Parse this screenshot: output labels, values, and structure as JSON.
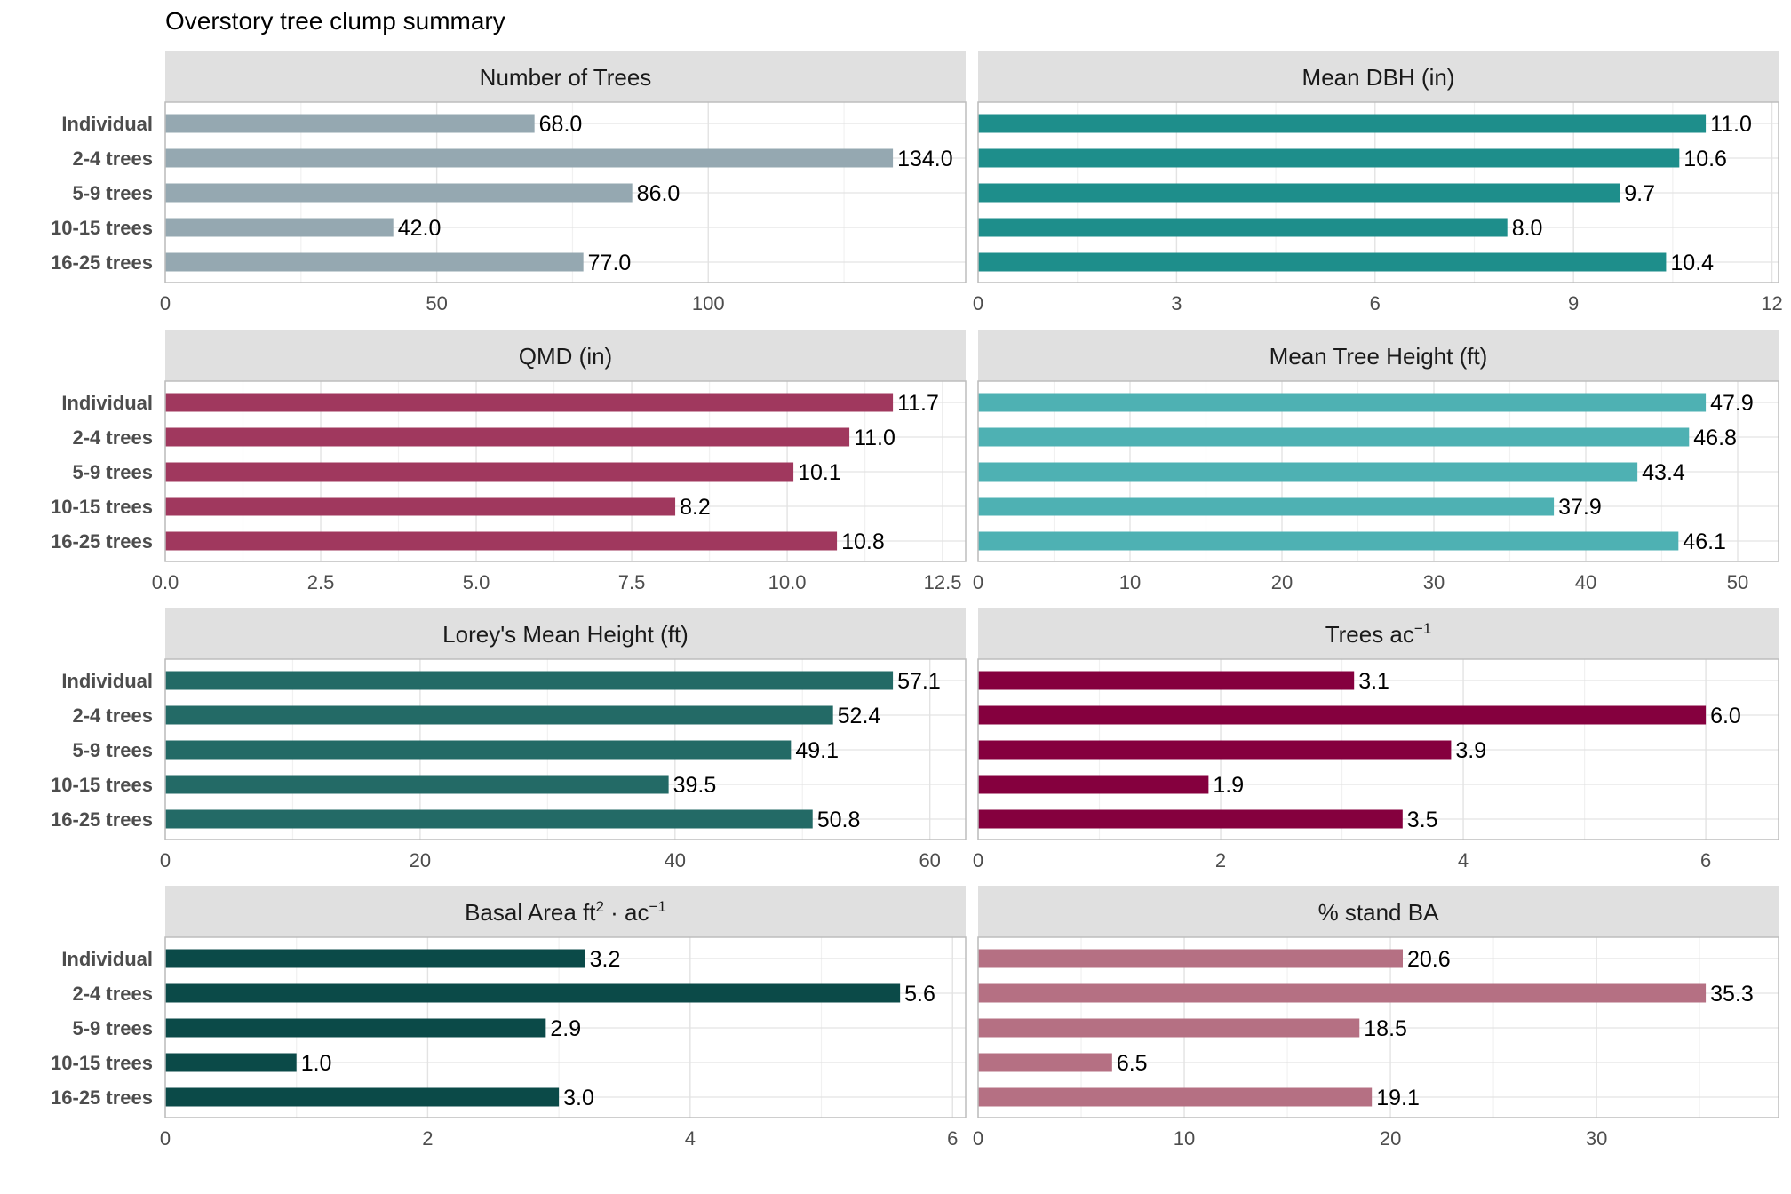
{
  "title": "Overstory tree clump summary",
  "colors": {
    "strip": "#e0e0e0",
    "panel_border": "#bdbdbd",
    "grid_major": "#e3e3e3",
    "grid_minor": "#f1f1f1",
    "axis_text": "#4d4d4d",
    "category_text": "#4d4d4d"
  },
  "chart_data": [
    {
      "type": "bar",
      "orientation": "horizontal",
      "title": "Number of Trees",
      "categories": [
        "Individual",
        "2-4 trees",
        "5-9 trees",
        "10-15 trees",
        "16-25 trees"
      ],
      "values": [
        68.0,
        134.0,
        86.0,
        42.0,
        77.0
      ],
      "labels": [
        "68.0",
        "134.0",
        "86.0",
        "42.0",
        "77.0"
      ],
      "xlim": [
        0,
        147.4
      ],
      "ticks": [
        0,
        50,
        100
      ],
      "tick_labels": [
        "0",
        "50",
        "100"
      ],
      "color": "#95a8b1",
      "grid": true
    },
    {
      "type": "bar",
      "orientation": "horizontal",
      "title": "Mean DBH (in)",
      "categories": [
        "Individual",
        "2-4 trees",
        "5-9 trees",
        "10-15 trees",
        "16-25 trees"
      ],
      "values": [
        11.0,
        10.6,
        9.7,
        8.0,
        10.4
      ],
      "labels": [
        "11.0",
        "10.6",
        "9.7",
        "8.0",
        "10.4"
      ],
      "xlim": [
        0,
        12.1
      ],
      "ticks": [
        0,
        3,
        6,
        9,
        12
      ],
      "tick_labels": [
        "0",
        "3",
        "6",
        "9",
        "12"
      ],
      "color": "#1e8e8b",
      "grid": true
    },
    {
      "type": "bar",
      "orientation": "horizontal",
      "title": "QMD (in)",
      "categories": [
        "Individual",
        "2-4 trees",
        "5-9 trees",
        "10-15 trees",
        "16-25 trees"
      ],
      "values": [
        11.7,
        11.0,
        10.1,
        8.2,
        10.8
      ],
      "labels": [
        "11.7",
        "11.0",
        "10.1",
        "8.2",
        "10.8"
      ],
      "xlim": [
        0,
        12.87
      ],
      "ticks": [
        0,
        2.5,
        5,
        7.5,
        10,
        12.5
      ],
      "tick_labels": [
        "0.0",
        "2.5",
        "5.0",
        "7.5",
        "10.0",
        "12.5"
      ],
      "color": "#a0385e",
      "grid": true
    },
    {
      "type": "bar",
      "orientation": "horizontal",
      "title": "Mean Tree Height (ft)",
      "categories": [
        "Individual",
        "2-4 trees",
        "5-9 trees",
        "10-15 trees",
        "16-25 trees"
      ],
      "values": [
        47.9,
        46.8,
        43.4,
        37.9,
        46.1
      ],
      "labels": [
        "47.9",
        "46.8",
        "43.4",
        "37.9",
        "46.1"
      ],
      "xlim": [
        0,
        52.69
      ],
      "ticks": [
        0,
        10,
        20,
        30,
        40,
        50
      ],
      "tick_labels": [
        "0",
        "10",
        "20",
        "30",
        "40",
        "50"
      ],
      "color": "#4eb1b3",
      "grid": true
    },
    {
      "type": "bar",
      "orientation": "horizontal",
      "title": "Lorey's Mean Height (ft)",
      "categories": [
        "Individual",
        "2-4 trees",
        "5-9 trees",
        "10-15 trees",
        "16-25 trees"
      ],
      "values": [
        57.1,
        52.4,
        49.1,
        39.5,
        50.8
      ],
      "labels": [
        "57.1",
        "52.4",
        "49.1",
        "39.5",
        "50.8"
      ],
      "xlim": [
        0,
        62.81
      ],
      "ticks": [
        0,
        20,
        40,
        60
      ],
      "tick_labels": [
        "0",
        "20",
        "40",
        "60"
      ],
      "color": "#236a66",
      "grid": true
    },
    {
      "type": "bar",
      "orientation": "horizontal",
      "title": "Trees ac",
      "title_sup": "−1",
      "categories": [
        "Individual",
        "2-4 trees",
        "5-9 trees",
        "10-15 trees",
        "16-25 trees"
      ],
      "values": [
        3.1,
        6.0,
        3.9,
        1.9,
        3.5
      ],
      "labels": [
        "3.1",
        "6.0",
        "3.9",
        "1.9",
        "3.5"
      ],
      "xlim": [
        0,
        6.6
      ],
      "ticks": [
        0,
        2,
        4,
        6
      ],
      "tick_labels": [
        "0",
        "2",
        "4",
        "6"
      ],
      "color": "#85003e",
      "grid": true
    },
    {
      "type": "bar",
      "orientation": "horizontal",
      "title": "Basal Area ft",
      "title_sup": "2",
      "title_mid": " · ac",
      "title_sup2": "−1",
      "categories": [
        "Individual",
        "2-4 trees",
        "5-9 trees",
        "10-15 trees",
        "16-25 trees"
      ],
      "values": [
        3.2,
        5.6,
        2.9,
        1.0,
        3.0
      ],
      "labels": [
        "3.2",
        "5.6",
        "2.9",
        "1.0",
        "3.0"
      ],
      "xlim": [
        0,
        6.1
      ],
      "ticks": [
        0,
        2,
        4,
        6
      ],
      "tick_labels": [
        "0",
        "2",
        "4",
        "6"
      ],
      "color": "#0b4a48",
      "grid": true
    },
    {
      "type": "bar",
      "orientation": "horizontal",
      "title": "% stand BA",
      "categories": [
        "Individual",
        "2-4 trees",
        "5-9 trees",
        "10-15 trees",
        "16-25 trees"
      ],
      "values": [
        20.6,
        35.3,
        18.5,
        6.5,
        19.1
      ],
      "labels": [
        "20.6",
        "35.3",
        "18.5",
        "6.5",
        "19.1"
      ],
      "xlim": [
        0,
        38.83
      ],
      "ticks": [
        0,
        10,
        20,
        30
      ],
      "tick_labels": [
        "0",
        "10",
        "20",
        "30"
      ],
      "color": "#b57083",
      "grid": true
    }
  ]
}
